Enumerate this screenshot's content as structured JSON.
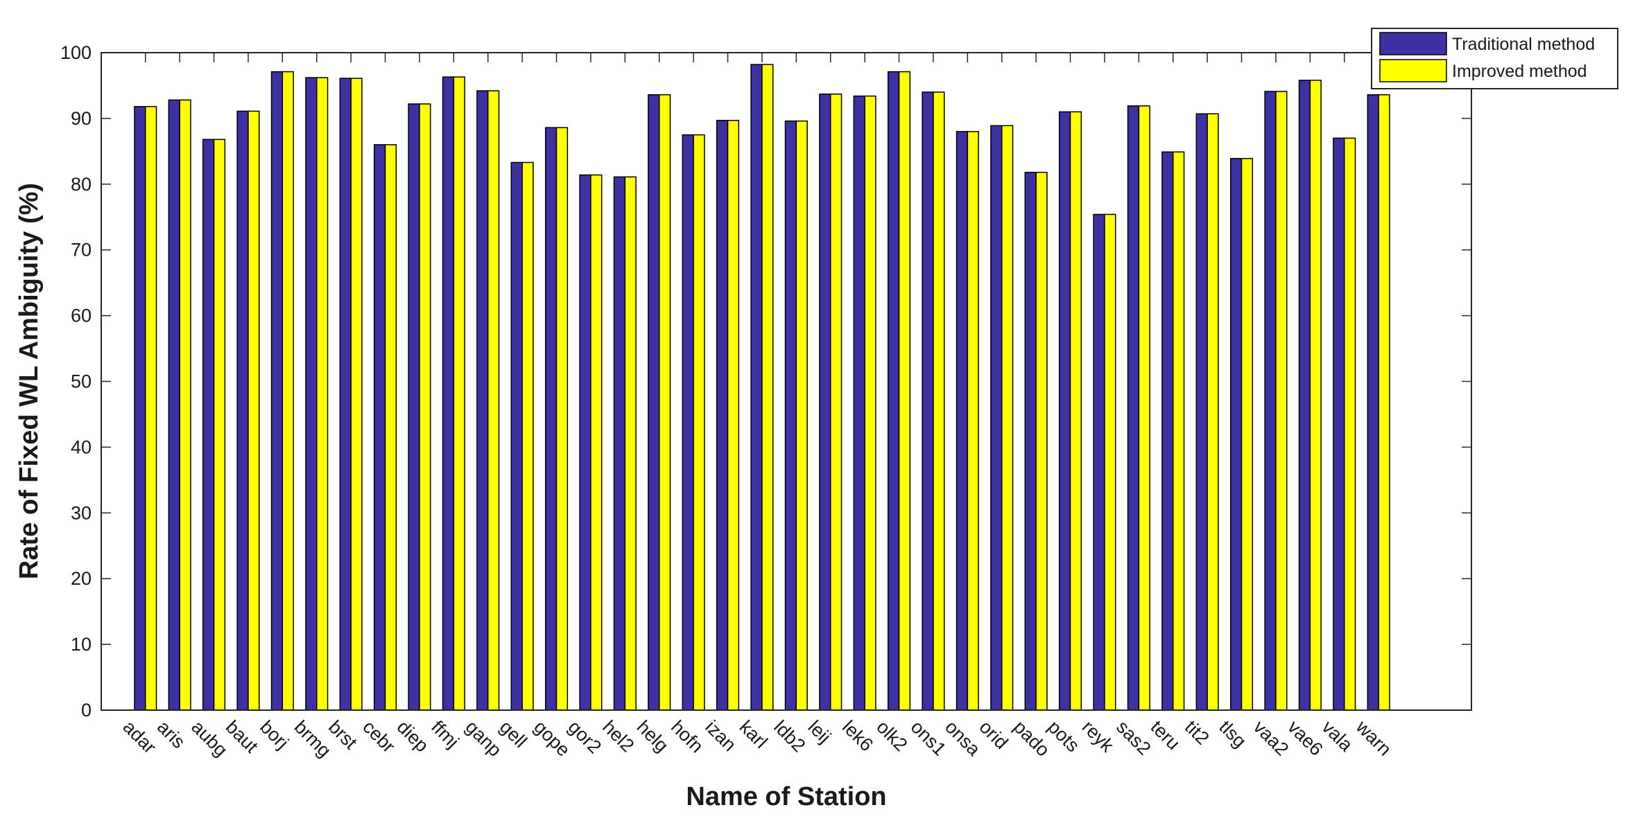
{
  "chart_data": {
    "type": "bar",
    "x_label": "Name of Station",
    "y_label": "Rate of Fixed WL Ambiguity (%)",
    "categories": [
      "adar",
      "aris",
      "aubg",
      "baut",
      "borj",
      "brmg",
      "brst",
      "cebr",
      "diep",
      "ffmj",
      "ganp",
      "gell",
      "gope",
      "gor2",
      "hel2",
      "helg",
      "hofn",
      "izan",
      "karl",
      "ldb2",
      "leij",
      "lek6",
      "olk2",
      "ons1",
      "onsa",
      "orid",
      "pado",
      "pots",
      "reyk",
      "sas2",
      "teru",
      "tit2",
      "tlsg",
      "vaa2",
      "vae6",
      "vala",
      "warn"
    ],
    "series": [
      {
        "name": "Traditional method",
        "color": "#3d31a3",
        "values": [
          91.8,
          92.8,
          86.8,
          91.1,
          97.1,
          96.2,
          96.1,
          86.0,
          92.2,
          96.3,
          94.2,
          83.3,
          88.6,
          81.4,
          81.1,
          93.6,
          87.5,
          89.7,
          98.2,
          89.6,
          93.7,
          93.4,
          97.1,
          94.0,
          88.0,
          88.9,
          81.8,
          91.0,
          75.4,
          91.9,
          84.9,
          90.7,
          83.9,
          94.1,
          95.8,
          87.0,
          93.6
        ]
      },
      {
        "name": "Improved method",
        "color": "#ffff00",
        "values": [
          91.8,
          92.8,
          86.8,
          91.1,
          97.1,
          96.2,
          96.1,
          86.0,
          92.2,
          96.3,
          94.2,
          83.3,
          88.6,
          81.4,
          81.1,
          93.6,
          87.5,
          89.7,
          98.2,
          89.6,
          93.7,
          93.4,
          97.1,
          94.0,
          88.0,
          88.9,
          81.8,
          91.0,
          75.4,
          91.9,
          84.9,
          90.7,
          83.9,
          94.1,
          95.8,
          87.0,
          93.6
        ]
      }
    ],
    "ylim": [
      0,
      100
    ],
    "yticks": [
      0,
      10,
      20,
      30,
      40,
      50,
      60,
      70,
      80,
      90,
      100
    ],
    "grid": false,
    "legend": "northeast"
  }
}
